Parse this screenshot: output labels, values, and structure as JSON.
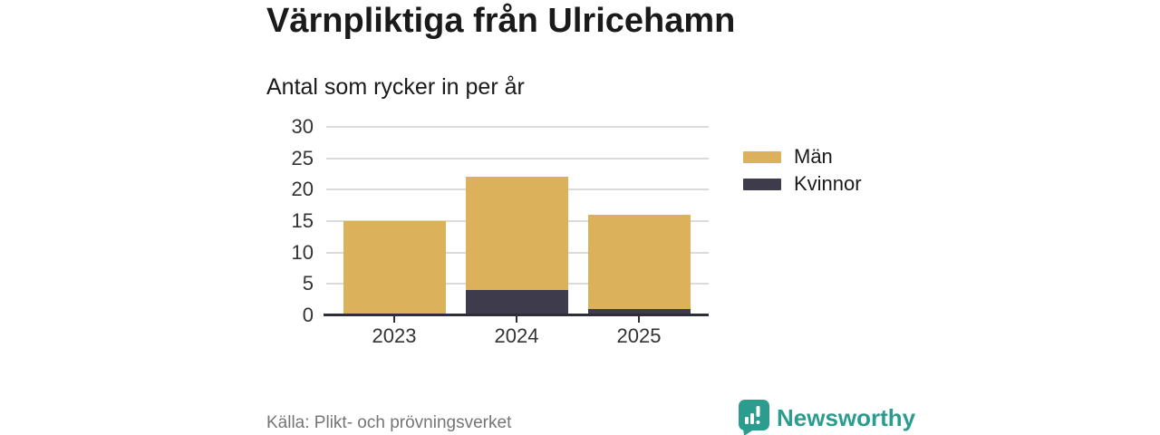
{
  "title": "Värnpliktiga från Ulricehamn",
  "subtitle": "Antal som rycker in per år",
  "source": "Källa: Plikt- och prövningsverket",
  "brand": {
    "name": "Newsworthy",
    "icon": "bar-chart-speech-bubble-icon",
    "color": "#2A9D8F"
  },
  "colors": {
    "men": "#DCB15C",
    "women": "#3E3C4C",
    "grid": "#DBDBDB",
    "axis": "#2E2D38",
    "tick_text": "#333333",
    "title_text": "#1A1A1A",
    "muted_text": "#757575"
  },
  "legend": [
    {
      "label": "Män",
      "color": "#DCB15C"
    },
    {
      "label": "Kvinnor",
      "color": "#3E3C4C"
    }
  ],
  "chart_data": {
    "type": "bar",
    "stacked": true,
    "title": "Värnpliktiga från Ulricehamn",
    "subtitle": "Antal som rycker in per år",
    "categories": [
      "2023",
      "2024",
      "2025"
    ],
    "series": [
      {
        "name": "Kvinnor",
        "color": "#3E3C4C",
        "values": [
          0,
          4,
          1
        ]
      },
      {
        "name": "Män",
        "color": "#DCB15C",
        "values": [
          15,
          18,
          15
        ]
      }
    ],
    "totals": [
      15,
      22,
      16
    ],
    "xlabel": "",
    "ylabel": "",
    "ylim": [
      0,
      30
    ],
    "yticks": [
      0,
      5,
      10,
      15,
      20,
      25,
      30
    ],
    "grid": true,
    "legend_position": "right"
  }
}
